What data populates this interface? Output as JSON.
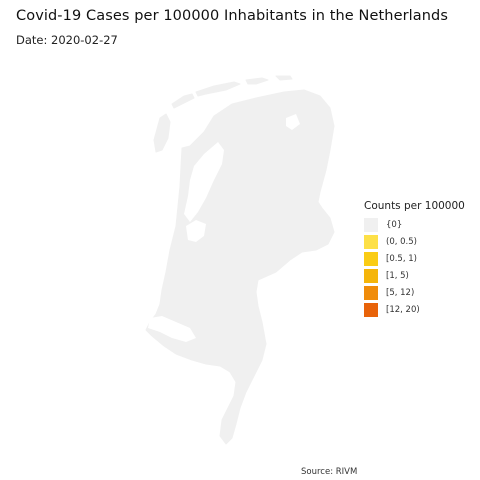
{
  "title": "Covid-19 Cases per 100000 Inhabitants in the Netherlands",
  "subtitle": "Date: 2020-02-27",
  "map": {
    "region": "Netherlands",
    "fill_color": "#f0f0f0"
  },
  "legend": {
    "title": "Counts per 100000",
    "items": [
      {
        "label": "{0}",
        "color": "#f0f0f0"
      },
      {
        "label": "(0, 0.5)",
        "color": "#fde047"
      },
      {
        "label": "[0.5, 1)",
        "color": "#facc15"
      },
      {
        "label": "[1, 5)",
        "color": "#f5b50a"
      },
      {
        "label": "[5, 12)",
        "color": "#f08c0a"
      },
      {
        "label": "[12, 20)",
        "color": "#e8630a"
      }
    ]
  },
  "source": "Source: RIVM"
}
